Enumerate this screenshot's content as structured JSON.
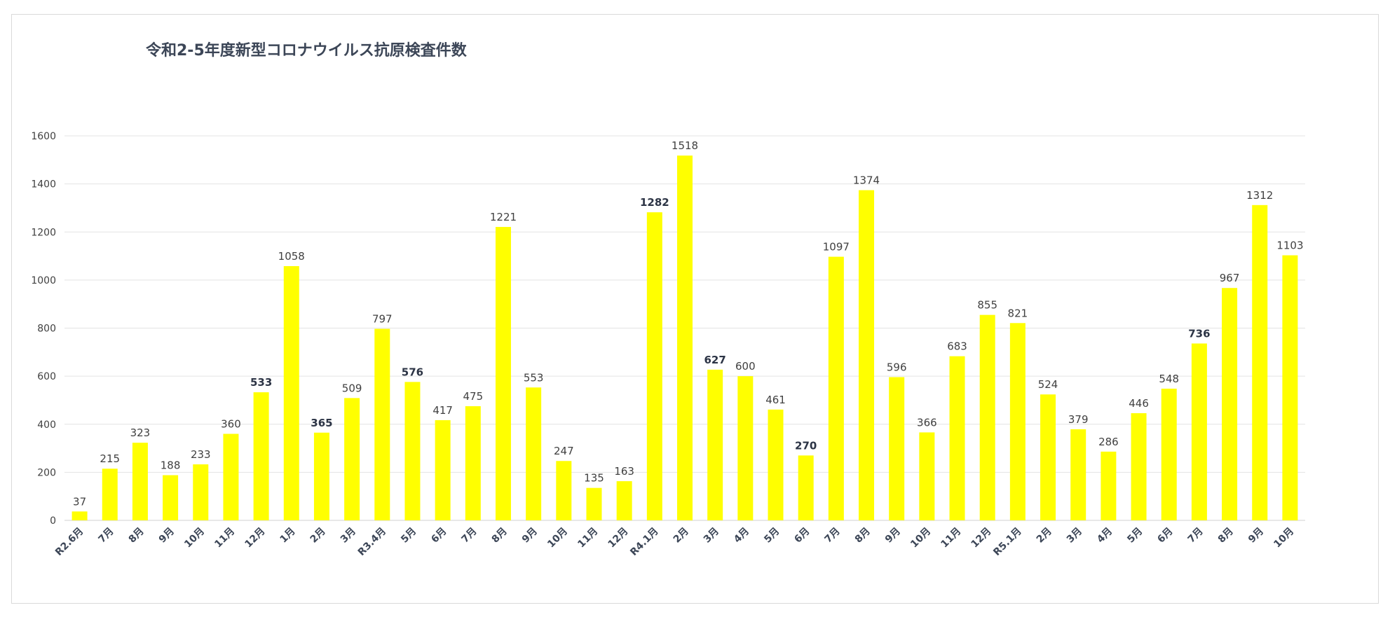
{
  "chart_data": {
    "type": "bar",
    "title": "令和2-5年度新型コロナウイルス抗原検査件数",
    "xlabel": "",
    "ylabel": "",
    "ylim": [
      0,
      1600
    ],
    "yticks": [
      "0",
      "200",
      "400",
      "600",
      "800",
      "1000",
      "1200",
      "1400",
      "1600"
    ],
    "grid": true,
    "bar_color": "#ffff00",
    "categories": [
      "R2.6月",
      "7月",
      "8月",
      "9月",
      "10月",
      "11月",
      "12月",
      "1月",
      "2月",
      "3月",
      "R3.4月",
      "5月",
      "6月",
      "7月",
      "8月",
      "9月",
      "10月",
      "11月",
      "12月",
      "R4.1月",
      "2月",
      "3月",
      "4月",
      "5月",
      "6月",
      "7月",
      "8月",
      "9月",
      "10月",
      "11月",
      "12月",
      "R5.1月",
      "2月",
      "3月",
      "4月",
      "5月",
      "6月",
      "7月",
      "8月",
      "9月",
      "10月"
    ],
    "values": [
      37,
      215,
      323,
      188,
      233,
      360,
      533,
      1058,
      365,
      509,
      797,
      576,
      417,
      475,
      1221,
      553,
      247,
      135,
      163,
      1282,
      1518,
      627,
      600,
      461,
      270,
      1097,
      1374,
      596,
      366,
      683,
      855,
      821,
      524,
      379,
      286,
      446,
      548,
      736,
      967,
      1312,
      1103
    ],
    "bold_labels": [
      6,
      8,
      11,
      19,
      21,
      24,
      37
    ]
  }
}
